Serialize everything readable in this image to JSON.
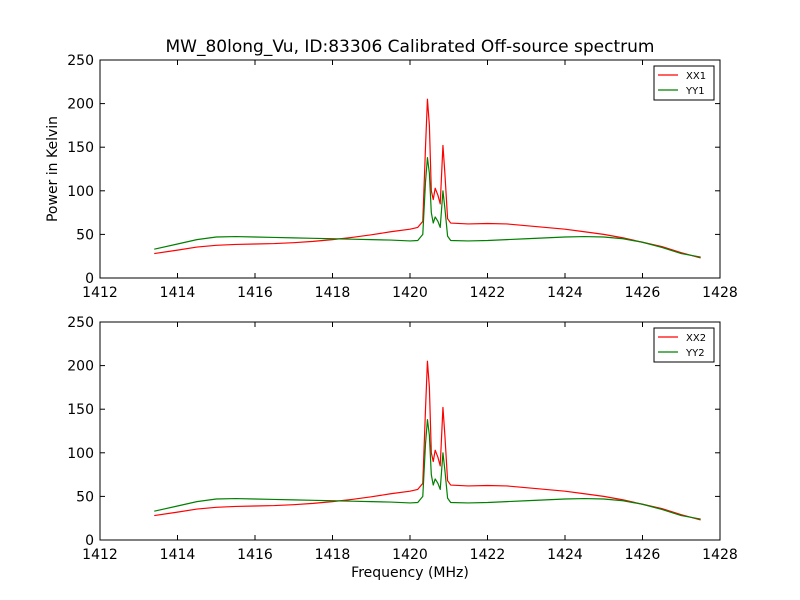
{
  "chart_data": [
    {
      "type": "line",
      "title": "MW_80long_Vu, ID:83306 Calibrated Off-source spectrum",
      "xlabel": "",
      "ylabel": "Power in Kelvin",
      "xlim": [
        1412,
        1428
      ],
      "ylim": [
        0,
        250
      ],
      "x_ticks": [
        "1412",
        "1414",
        "1416",
        "1418",
        "1420",
        "1422",
        "1424",
        "1426",
        "1428"
      ],
      "y_ticks": [
        "0",
        "50",
        "100",
        "150",
        "200",
        "250"
      ],
      "grid": false,
      "legend": "top-right",
      "series": [
        {
          "name": "XX1",
          "color": "#ff0000",
          "points": [
            [
              1413.4,
              28
            ],
            [
              1414,
              32
            ],
            [
              1414.5,
              35.5
            ],
            [
              1415,
              37.5
            ],
            [
              1415.5,
              38.5
            ],
            [
              1416,
              39
            ],
            [
              1416.5,
              39.5
            ],
            [
              1417,
              40.5
            ],
            [
              1417.5,
              42
            ],
            [
              1418,
              44
            ],
            [
              1418.5,
              46.5
            ],
            [
              1419,
              49.5
            ],
            [
              1419.5,
              53
            ],
            [
              1420,
              56
            ],
            [
              1420.2,
              58
            ],
            [
              1420.33,
              65
            ],
            [
              1420.4,
              150
            ],
            [
              1420.45,
              205
            ],
            [
              1420.5,
              175
            ],
            [
              1420.55,
              100
            ],
            [
              1420.6,
              90
            ],
            [
              1420.65,
              103
            ],
            [
              1420.72,
              95
            ],
            [
              1420.78,
              85
            ],
            [
              1420.85,
              152
            ],
            [
              1420.9,
              120
            ],
            [
              1420.97,
              68
            ],
            [
              1421.05,
              63
            ],
            [
              1421.5,
              62
            ],
            [
              1422,
              62.5
            ],
            [
              1422.5,
              62
            ],
            [
              1423,
              60
            ],
            [
              1423.5,
              58
            ],
            [
              1424,
              56
            ],
            [
              1424.5,
              53
            ],
            [
              1425,
              50
            ],
            [
              1425.5,
              46
            ],
            [
              1426,
              41
            ],
            [
              1426.5,
              36
            ],
            [
              1427,
              29
            ],
            [
              1427.5,
              23
            ]
          ]
        },
        {
          "name": "YY1",
          "color": "#008000",
          "points": [
            [
              1413.4,
              33
            ],
            [
              1414,
              39
            ],
            [
              1414.5,
              44
            ],
            [
              1415,
              47
            ],
            [
              1415.5,
              47.5
            ],
            [
              1416,
              47
            ],
            [
              1416.5,
              46.5
            ],
            [
              1417,
              46
            ],
            [
              1417.5,
              45.5
            ],
            [
              1418,
              45
            ],
            [
              1418.5,
              44.5
            ],
            [
              1419,
              44
            ],
            [
              1419.5,
              43.5
            ],
            [
              1420,
              42.5
            ],
            [
              1420.2,
              43
            ],
            [
              1420.33,
              50
            ],
            [
              1420.4,
              110
            ],
            [
              1420.45,
              138
            ],
            [
              1420.5,
              120
            ],
            [
              1420.55,
              75
            ],
            [
              1420.6,
              63
            ],
            [
              1420.65,
              70
            ],
            [
              1420.72,
              65
            ],
            [
              1420.78,
              58
            ],
            [
              1420.85,
              100
            ],
            [
              1420.9,
              80
            ],
            [
              1420.97,
              48
            ],
            [
              1421.05,
              43
            ],
            [
              1421.5,
              42.5
            ],
            [
              1422,
              43
            ],
            [
              1422.5,
              44
            ],
            [
              1423,
              45
            ],
            [
              1423.5,
              46
            ],
            [
              1424,
              47
            ],
            [
              1424.5,
              47.5
            ],
            [
              1425,
              47
            ],
            [
              1425.5,
              45
            ],
            [
              1426,
              41
            ],
            [
              1426.5,
              35
            ],
            [
              1427,
              28
            ],
            [
              1427.5,
              24
            ]
          ]
        }
      ]
    },
    {
      "type": "line",
      "title": "",
      "xlabel": "Frequency (MHz)",
      "ylabel": "",
      "xlim": [
        1412,
        1428
      ],
      "ylim": [
        0,
        250
      ],
      "x_ticks": [
        "1412",
        "1414",
        "1416",
        "1418",
        "1420",
        "1422",
        "1424",
        "1426",
        "1428"
      ],
      "y_ticks": [
        "0",
        "50",
        "100",
        "150",
        "200",
        "250"
      ],
      "grid": false,
      "legend": "top-right",
      "series": [
        {
          "name": "XX2",
          "color": "#ff0000",
          "points": [
            [
              1413.4,
              28
            ],
            [
              1414,
              32
            ],
            [
              1414.5,
              35.5
            ],
            [
              1415,
              37.5
            ],
            [
              1415.5,
              38.5
            ],
            [
              1416,
              39
            ],
            [
              1416.5,
              39.5
            ],
            [
              1417,
              40.5
            ],
            [
              1417.5,
              42
            ],
            [
              1418,
              44
            ],
            [
              1418.5,
              46.5
            ],
            [
              1419,
              49.5
            ],
            [
              1419.5,
              53
            ],
            [
              1420,
              56
            ],
            [
              1420.2,
              58
            ],
            [
              1420.33,
              65
            ],
            [
              1420.4,
              150
            ],
            [
              1420.45,
              205
            ],
            [
              1420.5,
              175
            ],
            [
              1420.55,
              100
            ],
            [
              1420.6,
              90
            ],
            [
              1420.65,
              103
            ],
            [
              1420.72,
              95
            ],
            [
              1420.78,
              85
            ],
            [
              1420.85,
              152
            ],
            [
              1420.9,
              120
            ],
            [
              1420.97,
              68
            ],
            [
              1421.05,
              63
            ],
            [
              1421.5,
              62
            ],
            [
              1422,
              62.5
            ],
            [
              1422.5,
              62
            ],
            [
              1423,
              60
            ],
            [
              1423.5,
              58
            ],
            [
              1424,
              56
            ],
            [
              1424.5,
              53
            ],
            [
              1425,
              50
            ],
            [
              1425.5,
              46
            ],
            [
              1426,
              41
            ],
            [
              1426.5,
              36
            ],
            [
              1427,
              29
            ],
            [
              1427.5,
              23
            ]
          ]
        },
        {
          "name": "YY2",
          "color": "#008000",
          "points": [
            [
              1413.4,
              33
            ],
            [
              1414,
              39
            ],
            [
              1414.5,
              44
            ],
            [
              1415,
              47
            ],
            [
              1415.5,
              47.5
            ],
            [
              1416,
              47
            ],
            [
              1416.5,
              46.5
            ],
            [
              1417,
              46
            ],
            [
              1417.5,
              45.5
            ],
            [
              1418,
              45
            ],
            [
              1418.5,
              44.5
            ],
            [
              1419,
              44
            ],
            [
              1419.5,
              43.5
            ],
            [
              1420,
              42.5
            ],
            [
              1420.2,
              43
            ],
            [
              1420.33,
              50
            ],
            [
              1420.4,
              110
            ],
            [
              1420.45,
              138
            ],
            [
              1420.5,
              120
            ],
            [
              1420.55,
              75
            ],
            [
              1420.6,
              63
            ],
            [
              1420.65,
              70
            ],
            [
              1420.72,
              65
            ],
            [
              1420.78,
              58
            ],
            [
              1420.85,
              100
            ],
            [
              1420.9,
              80
            ],
            [
              1420.97,
              48
            ],
            [
              1421.05,
              43
            ],
            [
              1421.5,
              42.5
            ],
            [
              1422,
              43
            ],
            [
              1422.5,
              44
            ],
            [
              1423,
              45
            ],
            [
              1423.5,
              46
            ],
            [
              1424,
              47
            ],
            [
              1424.5,
              47.5
            ],
            [
              1425,
              47
            ],
            [
              1425.5,
              45
            ],
            [
              1426,
              41
            ],
            [
              1426.5,
              35
            ],
            [
              1427,
              28
            ],
            [
              1427.5,
              24
            ]
          ]
        }
      ]
    }
  ]
}
